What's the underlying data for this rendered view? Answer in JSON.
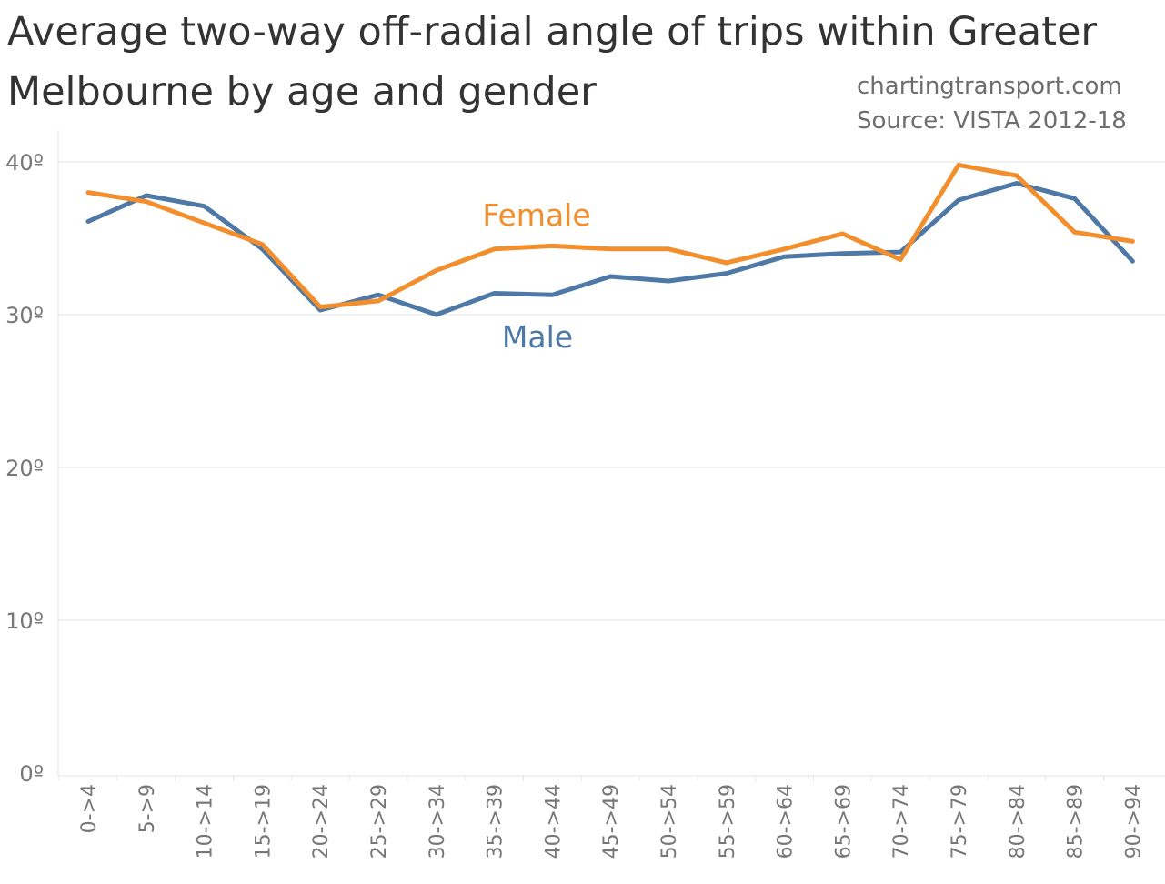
{
  "title": "Average two-way off-radial angle of trips within Greater Melbourne by age and gender",
  "credits": {
    "site": "chartingtransport.com",
    "source": "Source: VISTA 2012-18"
  },
  "colors": {
    "female": "#f28e2b",
    "male": "#4e79a7",
    "grid": "#e6e6e6",
    "tick_text": "#777777"
  },
  "chart_data": {
    "type": "line",
    "title": "Average two-way off-radial angle of trips within Greater Melbourne by age and gender",
    "xlabel": "",
    "ylabel": "",
    "ylim": [
      0,
      40
    ],
    "yticks": [
      {
        "value": 0,
        "label": "0º"
      },
      {
        "value": 10,
        "label": "10º"
      },
      {
        "value": 20,
        "label": "20º"
      },
      {
        "value": 30,
        "label": "30º"
      },
      {
        "value": 40,
        "label": "40º"
      }
    ],
    "categories": [
      "0->4",
      "5->9",
      "10->14",
      "15->19",
      "20->24",
      "25->29",
      "30->34",
      "35->39",
      "40->44",
      "45->49",
      "50->54",
      "55->59",
      "60->64",
      "65->69",
      "70->74",
      "75->79",
      "80->84",
      "85->89",
      "90->94"
    ],
    "series": [
      {
        "name": "Female",
        "key": "female",
        "values": [
          38.0,
          37.4,
          36.0,
          34.6,
          30.5,
          30.9,
          32.9,
          34.3,
          34.5,
          34.3,
          34.3,
          33.4,
          34.3,
          35.3,
          33.6,
          39.8,
          39.1,
          35.4,
          34.8
        ]
      },
      {
        "name": "Male",
        "key": "male",
        "values": [
          36.1,
          37.8,
          37.1,
          34.3,
          30.3,
          31.3,
          30.0,
          31.4,
          31.3,
          32.5,
          32.2,
          32.7,
          33.8,
          34.0,
          34.1,
          37.5,
          38.6,
          37.6,
          33.5
        ]
      }
    ],
    "annotations": [
      {
        "text": "Female",
        "series": "female",
        "placement": "above the line near 35->39"
      },
      {
        "text": "Male",
        "series": "male",
        "placement": "below the line near 35->39"
      }
    ],
    "grid": true,
    "legend": "direct labels"
  }
}
